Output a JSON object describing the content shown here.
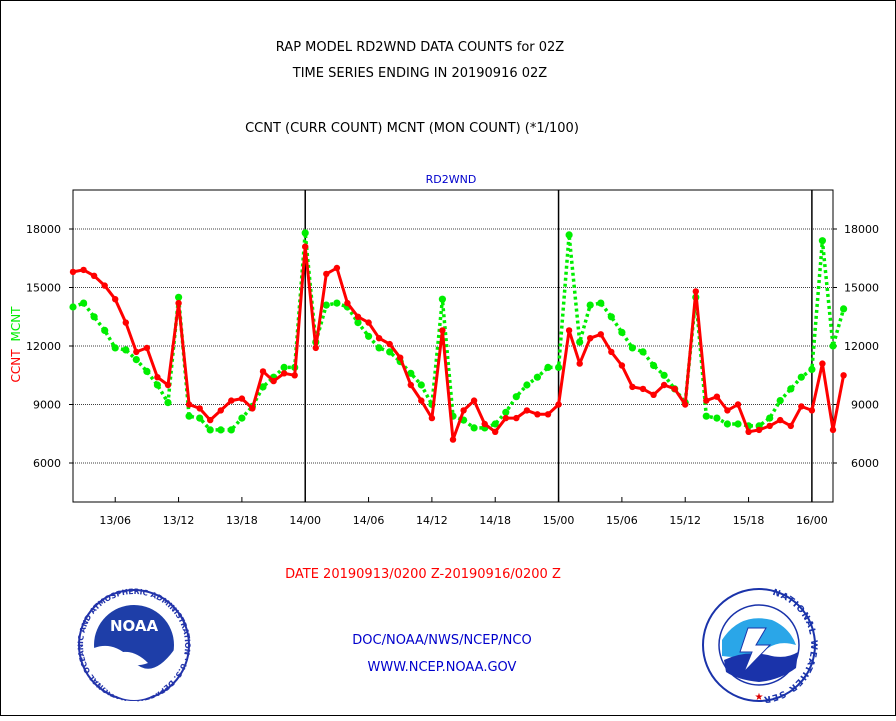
{
  "header": {
    "title_line1": "RAP MODEL RD2WND DATA COUNTS for 02Z",
    "title_line2": "TIME SERIES ENDING IN 20190916 02Z",
    "subtitle": "CCNT (CURR COUNT) MCNT (MON COUNT) (*1/100)",
    "panel_label": "RD2WND"
  },
  "footer": {
    "date_range": "DATE 20190913/0200 Z-20190916/0200 Z",
    "org_line": "DOC/NOAA/NWS/NCEP/NCO",
    "url_line": "WWW.NCEP.NOAA.GOV"
  },
  "logos": {
    "left": {
      "center_text": "NOAA",
      "ring_text": "NATIONAL OCEANIC AND ATMOSPHERIC ADMINISTRATION · U.S. DEPARTMENT OF COMMERCE"
    },
    "right": {
      "ring_text": "NATIONAL WEATHER SERVICE"
    }
  },
  "colors": {
    "ccnt": "#ff0000",
    "mcnt": "#00ee00",
    "title_text": "#000000",
    "panel_label": "#0000cc",
    "footer_date": "#ff0000",
    "footer_links": "#0000cc"
  },
  "chart_data": {
    "type": "line",
    "title": "RAP MODEL RD2WND DATA COUNTS for 02Z",
    "ylabel_parts": [
      "CCNT",
      "MCNT"
    ],
    "ylim": [
      4000,
      20000
    ],
    "yticks": [
      6000,
      9000,
      12000,
      15000,
      18000
    ],
    "ytick_labels": [
      "6000",
      "9000",
      "12000",
      "15000",
      "18000"
    ],
    "x_range_hours": [
      0,
      72
    ],
    "x_tick_hours": [
      4,
      10,
      16,
      22,
      28,
      34,
      40,
      46,
      52,
      58,
      64,
      70
    ],
    "x_tick_labels": [
      "13/06",
      "13/12",
      "13/18",
      "14/00",
      "14/06",
      "14/12",
      "14/18",
      "15/00",
      "15/06",
      "15/12",
      "15/18",
      "16/00"
    ],
    "day_boundaries_hours": [
      22,
      46,
      70
    ],
    "grid": true,
    "series": [
      {
        "name": "CCNT",
        "values": [
          15800,
          15900,
          15600,
          15100,
          14400,
          13200,
          11700,
          11900,
          10400,
          10000,
          14200,
          9000,
          8800,
          8200,
          8700,
          9200,
          9300,
          8800,
          10700,
          10200,
          10600,
          10500,
          17100,
          11900,
          15700,
          16000,
          14200,
          13500,
          13200,
          12400,
          12100,
          11400,
          10000,
          9200,
          8300,
          12800,
          7200,
          8700,
          9200,
          8000,
          7600,
          8300,
          8300,
          8700,
          8500,
          8500,
          9000,
          12800,
          11100,
          12400,
          12600,
          11700,
          11000,
          9900,
          9800,
          9500,
          10000,
          9800,
          9000,
          14800,
          9200,
          9400,
          8700,
          9000,
          7600,
          7700,
          7900,
          8200,
          7900,
          8900,
          8700,
          11100,
          7700,
          10500
        ]
      },
      {
        "name": "MCNT",
        "values": [
          14000,
          14200,
          13500,
          12800,
          11900,
          11800,
          11300,
          10700,
          10000,
          9100,
          14500,
          8400,
          8300,
          7700,
          7700,
          7700,
          8300,
          8900,
          9900,
          10400,
          10900,
          10900,
          17800,
          12200,
          14100,
          14200,
          14000,
          13200,
          12500,
          11900,
          11700,
          11200,
          10600,
          10000,
          9000,
          14400,
          8400,
          8200,
          7800,
          7800,
          8000,
          8600,
          9400,
          10000,
          10400,
          10900,
          10900,
          17700,
          12200,
          14100,
          14200,
          13500,
          12700,
          11900,
          11700,
          11000,
          10500,
          9800,
          9100,
          14500,
          8400,
          8300,
          8000,
          8000,
          7900,
          7900,
          8300,
          9200,
          9800,
          10400,
          10800,
          17400,
          12000,
          13900
        ]
      }
    ]
  }
}
